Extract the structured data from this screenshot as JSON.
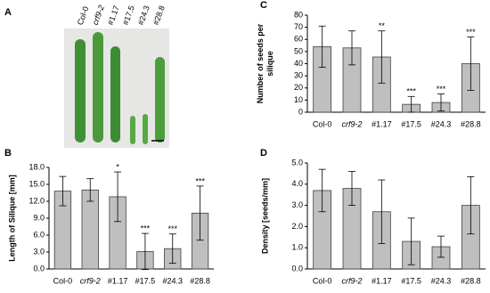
{
  "photo": {
    "panel": "A",
    "labels": [
      "Col-0",
      "crf9-2",
      "#1.17",
      "#17.5",
      "#24.3",
      "#28.8"
    ]
  },
  "chart_data": [
    {
      "type": "bar",
      "panel": "B",
      "ylabel": [
        "Length of Silique [mm]"
      ],
      "categories": [
        "Col-0",
        "crf9-2",
        "#1.17",
        "#17.5",
        "#24.3",
        "#28.8"
      ],
      "values": [
        13.8,
        14.0,
        12.8,
        3.1,
        3.6,
        9.9
      ],
      "errors": [
        2.6,
        2.0,
        4.4,
        3.2,
        2.6,
        4.8
      ],
      "annotations": [
        null,
        null,
        "*",
        "***",
        "***",
        "***"
      ],
      "color": "#bfbfbf",
      "ylim": [
        0,
        18
      ],
      "yticks": [
        {
          "value": 0,
          "label": "0.0"
        },
        {
          "value": 3,
          "label": "3.0"
        },
        {
          "value": 6,
          "label": "6.0"
        },
        {
          "value": 9,
          "label": "9.0"
        },
        {
          "value": 12,
          "label": "12.0"
        },
        {
          "value": 15,
          "label": "15.0"
        },
        {
          "value": 18,
          "label": "18.0"
        }
      ]
    },
    {
      "type": "bar",
      "panel": "C",
      "ylabel": [
        "Number of seeds per",
        "silique"
      ],
      "categories": [
        "Col-0",
        "crf9-2",
        "#1.17",
        "#17.5",
        "#24.3",
        "#28.8"
      ],
      "values": [
        54,
        53,
        45.5,
        6.5,
        8,
        40
      ],
      "errors": [
        17,
        14,
        21.5,
        6.5,
        7,
        22
      ],
      "annotations": [
        null,
        null,
        "**",
        "***",
        "***",
        "***"
      ],
      "color": "#bfbfbf",
      "ylim": [
        0,
        80
      ],
      "yticks": [
        0,
        10,
        20,
        30,
        40,
        50,
        60,
        70,
        80
      ]
    },
    {
      "type": "bar",
      "panel": "D",
      "ylabel": [
        "Density [seeds/mm]"
      ],
      "categories": [
        "Col-0",
        "crf9-2",
        "#1.17",
        "#17.5",
        "#24.3",
        "#28.8"
      ],
      "values": [
        3.7,
        3.8,
        2.7,
        1.3,
        1.05,
        3.0
      ],
      "errors": [
        1.0,
        0.8,
        1.5,
        1.1,
        0.5,
        1.35
      ],
      "color": "#bfbfbf",
      "ylim": [
        0,
        5
      ],
      "yticks": [
        {
          "value": 0,
          "label": "0.0"
        },
        {
          "value": 1,
          "label": "1.0"
        },
        {
          "value": 2,
          "label": "2.0"
        },
        {
          "value": 3,
          "label": "3.0"
        },
        {
          "value": 4,
          "label": "4.0"
        },
        {
          "value": 5,
          "label": "5.0"
        }
      ]
    }
  ]
}
